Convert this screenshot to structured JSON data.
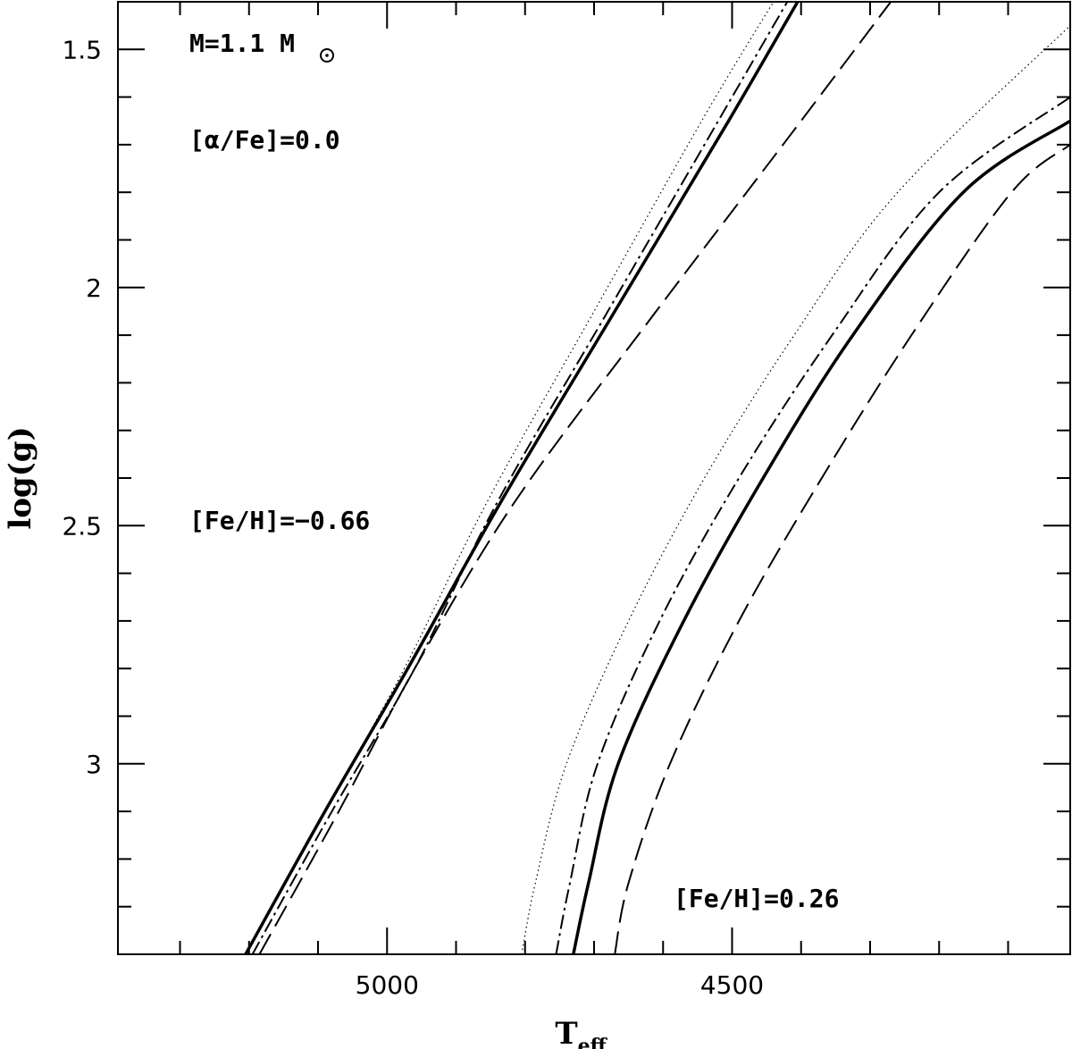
{
  "chart_data": {
    "type": "line",
    "title": "",
    "xlabel": "T_eff",
    "ylabel": "log(g)",
    "xlim": [
      5390,
      4010
    ],
    "ylim": [
      3.4,
      1.4
    ],
    "x_ticks": [
      5000,
      4500
    ],
    "y_ticks": [
      1.5,
      2,
      2.5,
      3
    ],
    "x_tick_labels": [
      "5000",
      "4500"
    ],
    "y_tick_labels": [
      "1.5",
      "2",
      "2.5",
      "3"
    ],
    "grid": false,
    "annotations": {
      "mass": "M=1.1 M",
      "alpha": "[α/Fe]=0.0",
      "feh_low": "[Fe/H]=−0.66",
      "feh_high": "[Fe/H]=0.26"
    },
    "groups": [
      {
        "label": "[Fe/H]=−0.66",
        "series": [
          {
            "style": "dotted",
            "points": [
              [
                5205,
                3.4
              ],
              [
                5090,
                3.1
              ],
              [
                4975,
                2.8
              ],
              [
                4855,
                2.45
              ],
              [
                4700,
                2.05
              ],
              [
                4540,
                1.64
              ],
              [
                4440,
                1.4
              ]
            ]
          },
          {
            "style": "dash-dot",
            "points": [
              [
                5195,
                3.4
              ],
              [
                5080,
                3.1
              ],
              [
                4960,
                2.8
              ],
              [
                4840,
                2.45
              ],
              [
                4680,
                2.05
              ],
              [
                4520,
                1.65
              ],
              [
                4420,
                1.4
              ]
            ]
          },
          {
            "style": "solid",
            "points": [
              [
                5205,
                3.4
              ],
              [
                5090,
                3.1
              ],
              [
                4970,
                2.8
              ],
              [
                4835,
                2.45
              ],
              [
                4670,
                2.05
              ],
              [
                4505,
                1.65
              ],
              [
                4405,
                1.4
              ]
            ]
          },
          {
            "style": "long-dash",
            "points": [
              [
                5185,
                3.4
              ],
              [
                5070,
                3.1
              ],
              [
                4960,
                2.8
              ],
              [
                4815,
                2.45
              ],
              [
                4610,
                2.05
              ],
              [
                4400,
                1.65
              ],
              [
                4270,
                1.4
              ]
            ]
          }
        ]
      },
      {
        "label": "[Fe/H]=0.26",
        "series": [
          {
            "style": "dotted",
            "points": [
              [
                4805,
                3.4
              ],
              [
                4785,
                3.25
              ],
              [
                4740,
                3.0
              ],
              [
                4650,
                2.7
              ],
              [
                4540,
                2.4
              ],
              [
                4410,
                2.1
              ],
              [
                4260,
                1.8
              ],
              [
                4010,
                1.45
              ]
            ]
          },
          {
            "style": "dash-dot",
            "points": [
              [
                4755,
                3.4
              ],
              [
                4735,
                3.25
              ],
              [
                4695,
                3.0
              ],
              [
                4605,
                2.7
              ],
              [
                4490,
                2.4
              ],
              [
                4355,
                2.1
              ],
              [
                4200,
                1.8
              ],
              [
                4010,
                1.6
              ]
            ]
          },
          {
            "style": "solid",
            "points": [
              [
                4730,
                3.4
              ],
              [
                4708,
                3.25
              ],
              [
                4665,
                3.0
              ],
              [
                4570,
                2.7
              ],
              [
                4455,
                2.4
              ],
              [
                4325,
                2.1
              ],
              [
                4165,
                1.8
              ],
              [
                4010,
                1.65
              ]
            ]
          },
          {
            "style": "long-dash",
            "points": [
              [
                4670,
                3.4
              ],
              [
                4650,
                3.25
              ],
              [
                4590,
                3.0
              ],
              [
                4490,
                2.7
              ],
              [
                4370,
                2.4
              ],
              [
                4240,
                2.1
              ],
              [
                4095,
                1.8
              ],
              [
                4010,
                1.7
              ]
            ]
          }
        ]
      }
    ]
  }
}
